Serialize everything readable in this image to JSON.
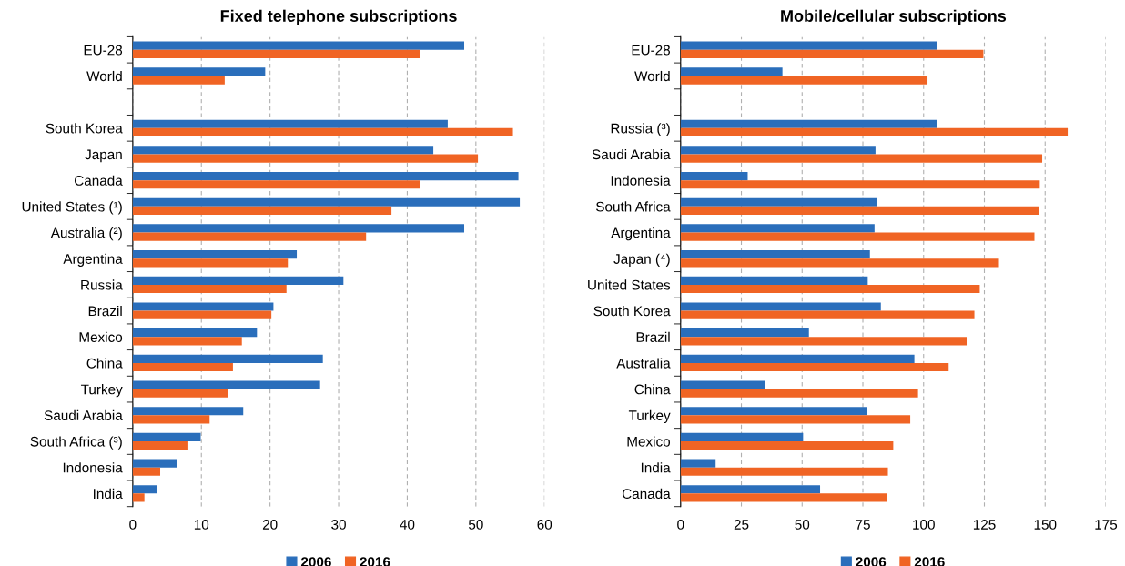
{
  "chart_data": [
    {
      "type": "bar",
      "orientation": "horizontal",
      "title": "Fixed telephone subscriptions",
      "categories": [
        "EU-28",
        "World",
        null,
        "South Korea",
        "Japan",
        "Canada",
        "United States (¹)",
        "Australia (²)",
        "Argentina",
        "Russia",
        "Brazil",
        "Mexico",
        "China",
        "Turkey",
        "Saudi Arabia",
        "South Africa (³)",
        "Indonesia",
        "India"
      ],
      "series": [
        {
          "name": "2006",
          "color": "#2a6ebb",
          "values": [
            48.3,
            19.3,
            null,
            45.9,
            43.8,
            56.2,
            56.4,
            48.3,
            23.9,
            30.7,
            20.5,
            18.1,
            27.7,
            27.3,
            16.1,
            9.9,
            6.4,
            3.5
          ]
        },
        {
          "name": "2016",
          "color": "#f06424",
          "values": [
            41.8,
            13.4,
            null,
            55.4,
            50.3,
            41.8,
            37.7,
            34.0,
            22.6,
            22.4,
            20.2,
            15.9,
            14.6,
            13.9,
            11.2,
            8.1,
            4.0,
            1.7
          ]
        }
      ],
      "xlim": [
        0,
        60
      ],
      "xticks": [
        0,
        10,
        20,
        30,
        40,
        50,
        60
      ],
      "grid": "x",
      "legend": "bottom"
    },
    {
      "type": "bar",
      "orientation": "horizontal",
      "title": "Mobile/cellular subscriptions",
      "categories": [
        "EU-28",
        "World",
        null,
        "Russia (³)",
        "Saudi Arabia",
        "Indonesia",
        "South Africa",
        "Argentina",
        "Japan (⁴)",
        "United States",
        "South Korea",
        "Brazil",
        "Australia",
        "China",
        "Turkey",
        "Mexico",
        "India",
        "Canada"
      ],
      "series": [
        {
          "name": "2006",
          "color": "#2a6ebb",
          "values": [
            105.4,
            41.9,
            null,
            105.4,
            80.2,
            27.6,
            80.7,
            79.8,
            77.9,
            77.0,
            82.4,
            52.8,
            96.2,
            34.6,
            76.6,
            50.4,
            14.4,
            57.4
          ]
        },
        {
          "name": "2016",
          "color": "#f06424",
          "values": [
            124.6,
            101.6,
            null,
            159.3,
            148.8,
            147.8,
            147.4,
            145.6,
            131.0,
            123.1,
            120.9,
            117.7,
            110.3,
            97.7,
            94.5,
            87.5,
            85.3,
            84.9
          ]
        }
      ],
      "xlim": [
        0,
        175
      ],
      "xticks": [
        0,
        25,
        50,
        75,
        100,
        125,
        150,
        175
      ],
      "grid": "x",
      "legend": "bottom"
    }
  ]
}
